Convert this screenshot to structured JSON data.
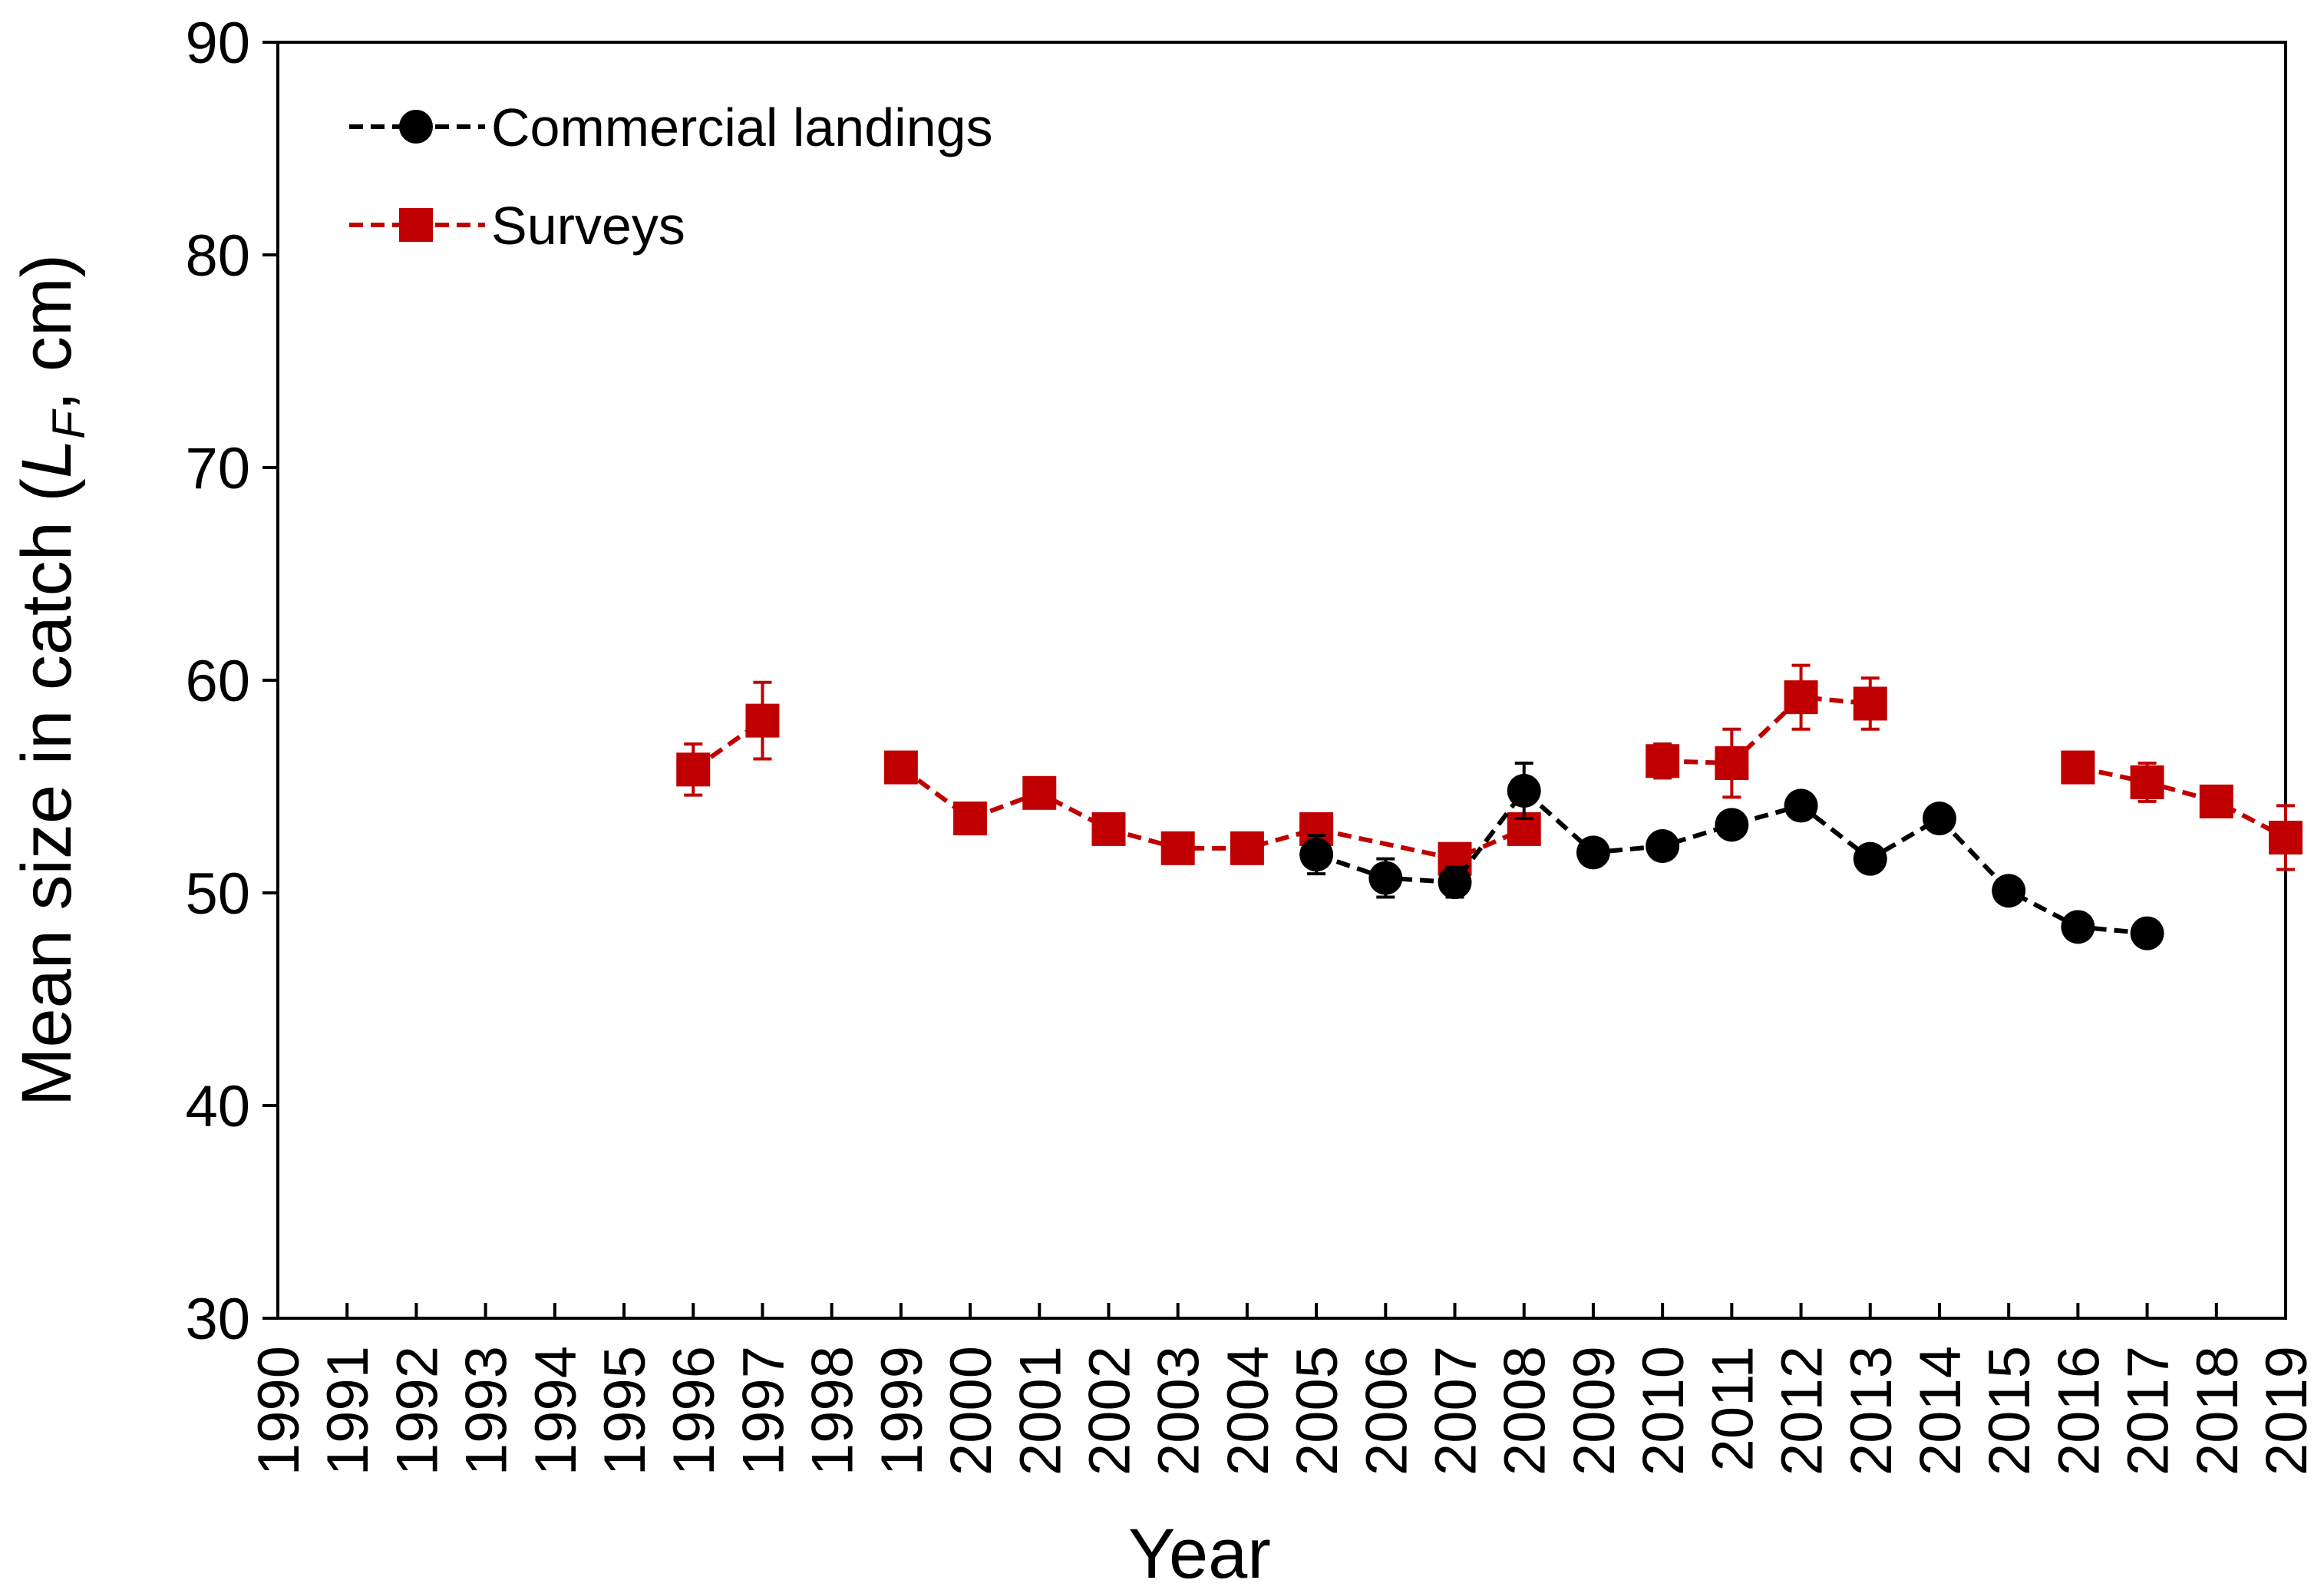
{
  "chart_data": {
    "type": "line",
    "title": "",
    "xlabel": "Year",
    "ylabel": {
      "prefix": "Mean size in catch (",
      "variable": "L",
      "subscript": "F",
      "suffix": ", cm)"
    },
    "ylim": [
      30,
      90
    ],
    "yticks": [
      30,
      40,
      50,
      60,
      70,
      80,
      90
    ],
    "categories": [
      "1990",
      "1991",
      "1992",
      "1993",
      "1994",
      "1995",
      "1996",
      "1997",
      "1998",
      "1999",
      "2000",
      "2001",
      "2002",
      "2003",
      "2004",
      "2005",
      "2006",
      "2007",
      "2008",
      "2009",
      "2010",
      "2011",
      "2012",
      "2013",
      "2014",
      "2015",
      "2016",
      "2017",
      "2018",
      "2019"
    ],
    "grid": false,
    "legend_position": "top-left",
    "series": [
      {
        "name": "Commercial landings",
        "color": "#000000",
        "marker": "circle",
        "line_style": "dashed",
        "segments": [
          [
            {
              "x": 2005,
              "y": 51.8,
              "err": 0.9
            },
            {
              "x": 2006,
              "y": 50.7,
              "err": 0.9
            },
            {
              "x": 2007,
              "y": 50.5,
              "err": 0.7
            },
            {
              "x": 2008,
              "y": 54.8,
              "err": 1.3
            },
            {
              "x": 2009,
              "y": 51.9,
              "err": 0.4
            },
            {
              "x": 2010,
              "y": 52.2,
              "err": 0.4
            },
            {
              "x": 2011,
              "y": 53.2,
              "err": 0.4
            },
            {
              "x": 2012,
              "y": 54.1,
              "err": 0.4
            },
            {
              "x": 2013,
              "y": 51.6,
              "err": 0.4
            },
            {
              "x": 2014,
              "y": 53.5,
              "err": 0.4
            },
            {
              "x": 2015,
              "y": 50.1,
              "err": 0.4
            },
            {
              "x": 2016,
              "y": 48.4,
              "err": 0.4
            },
            {
              "x": 2017,
              "y": 48.1,
              "err": 0.4
            }
          ]
        ]
      },
      {
        "name": "Surveys",
        "color": "#c00000",
        "marker": "square",
        "line_style": "dashed",
        "segments": [
          [
            {
              "x": 1996,
              "y": 55.8,
              "err": 1.2
            },
            {
              "x": 1997,
              "y": 58.1,
              "err": 1.8
            }
          ],
          [
            {
              "x": 1999,
              "y": 55.9,
              "err": 0.7
            },
            {
              "x": 2000,
              "y": 53.5,
              "err": 0.5
            },
            {
              "x": 2001,
              "y": 54.7,
              "err": 0.7
            },
            {
              "x": 2002,
              "y": 53.0,
              "err": 0.5
            },
            {
              "x": 2003,
              "y": 52.1,
              "err": 0.4
            },
            {
              "x": 2004,
              "y": 52.1,
              "err": 0.4
            },
            {
              "x": 2005,
              "y": 53.0,
              "err": 0.5
            },
            {
              "x": 2006,
              "y": null
            },
            {
              "x": 2007,
              "y": 51.6,
              "err": 0.5
            },
            {
              "x": 2008,
              "y": 53.0,
              "err": 0.5
            }
          ],
          [
            {
              "x": 2010,
              "y": 56.2,
              "err": 0.8
            },
            {
              "x": 2011,
              "y": 56.1,
              "err": 1.6
            },
            {
              "x": 2012,
              "y": 59.2,
              "err": 1.5
            },
            {
              "x": 2013,
              "y": 58.9,
              "err": 1.2
            }
          ],
          [
            {
              "x": 2016,
              "y": 55.9,
              "err": 0.5
            },
            {
              "x": 2017,
              "y": 55.2,
              "err": 0.9
            },
            {
              "x": 2018,
              "y": 54.3,
              "err": 0.7
            },
            {
              "x": 2019,
              "y": 52.6,
              "err": 1.5
            }
          ]
        ]
      }
    ]
  }
}
